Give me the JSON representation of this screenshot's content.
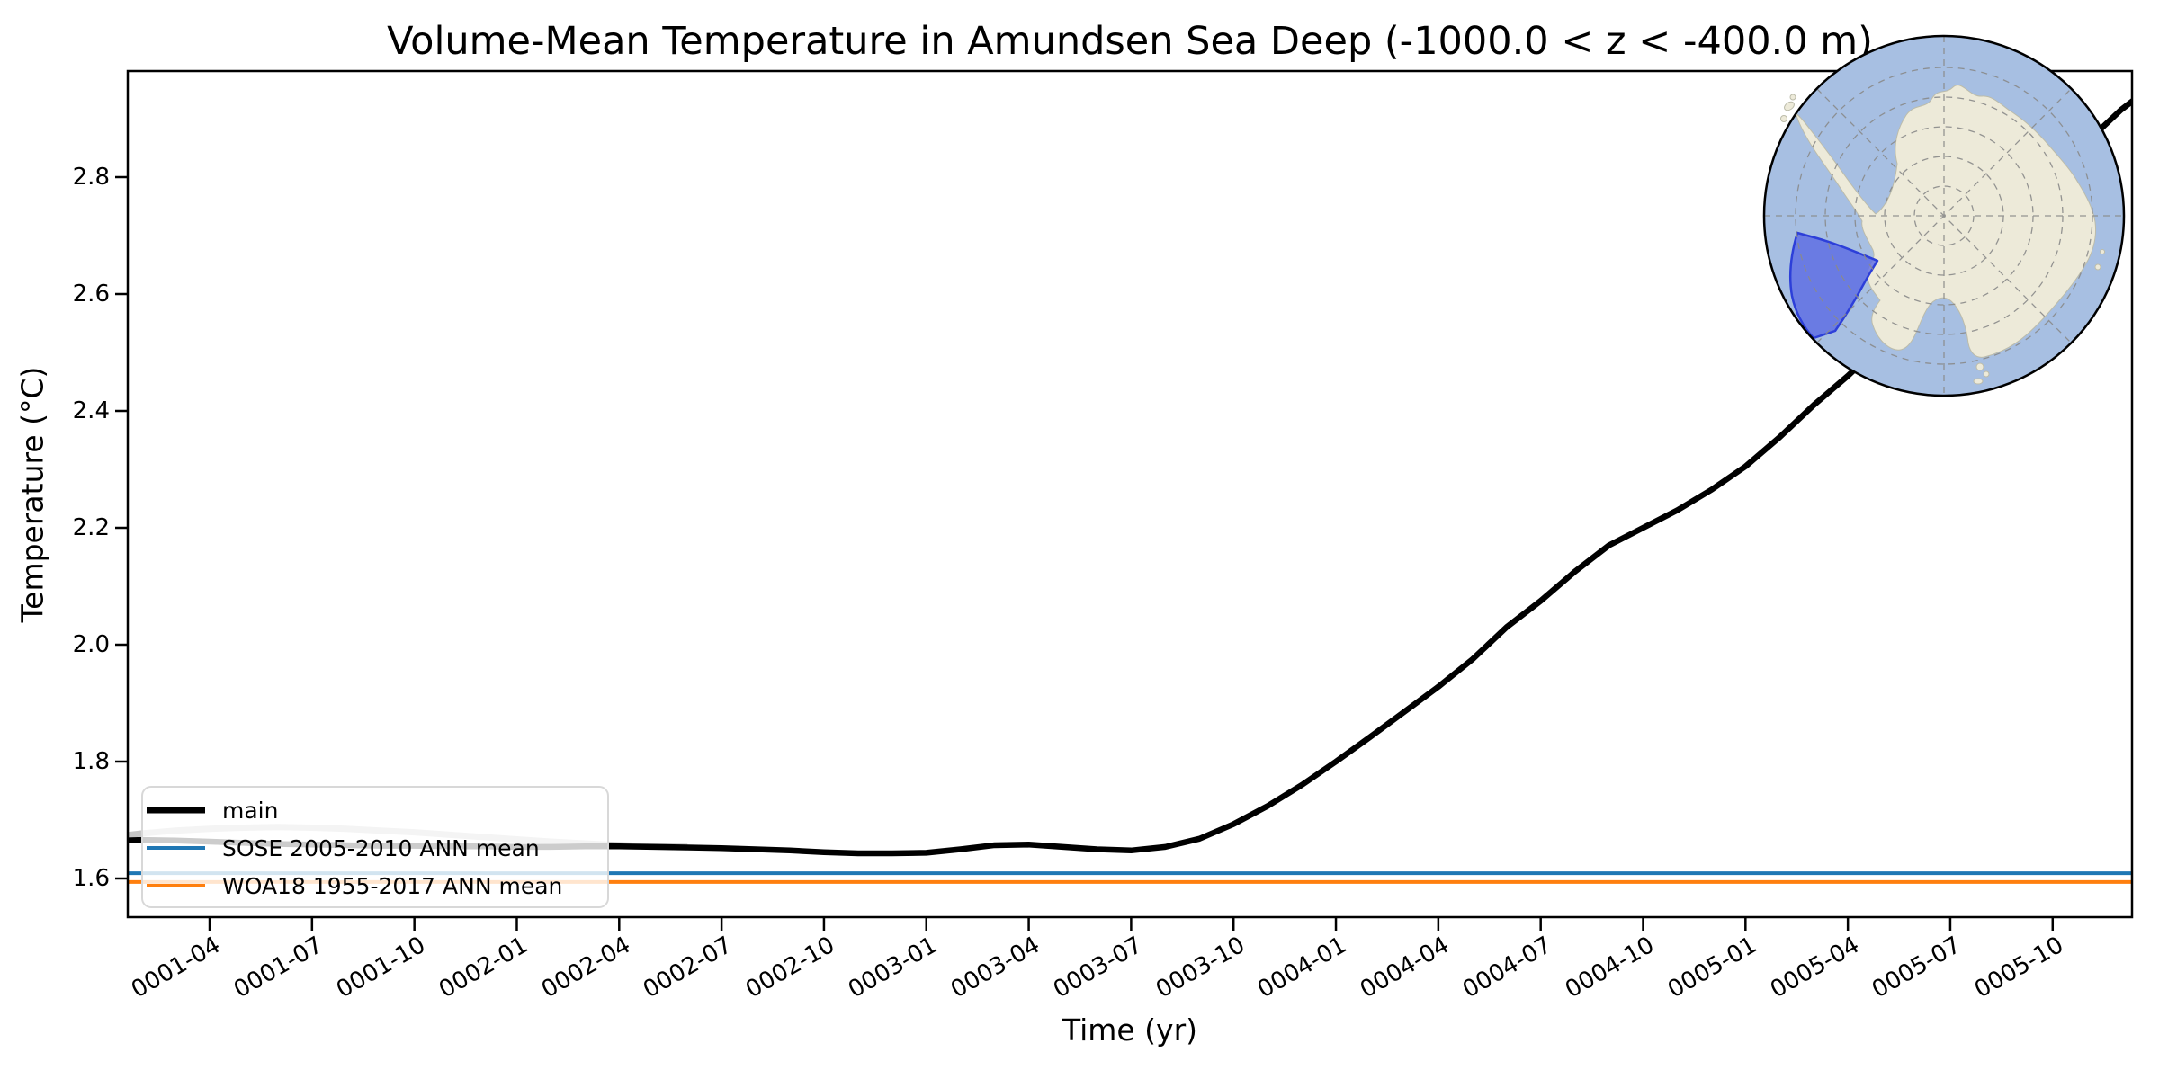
{
  "title": "Volume-Mean Temperature in Amundsen Sea Deep (-1000.0 < z < -400.0 m)",
  "xaxis": {
    "label": "Time (yr)",
    "ticks": [
      "0001-04",
      "0001-07",
      "0001-10",
      "0002-01",
      "0002-04",
      "0002-07",
      "0002-10",
      "0003-01",
      "0003-04",
      "0003-07",
      "0003-10",
      "0004-01",
      "0004-04",
      "0004-07",
      "0004-10",
      "0005-01",
      "0005-04",
      "0005-07",
      "0005-10"
    ]
  },
  "yaxis": {
    "label": "Temperature (°C)",
    "ticks": [
      "1.6",
      "1.8",
      "2.0",
      "2.2",
      "2.4",
      "2.6",
      "2.8"
    ]
  },
  "legend": {
    "entries": [
      {
        "label": "main",
        "color": "#000000",
        "linewidth": 7
      },
      {
        "label": "SOSE 2005-2010 ANN mean",
        "color": "#1f77b4",
        "linewidth": 4
      },
      {
        "label": "WOA18 1955-2017 ANN mean",
        "color": "#ff7f0e",
        "linewidth": 4
      }
    ]
  },
  "chart_data": {
    "type": "line",
    "title": "Volume-Mean Temperature in Amundsen Sea Deep (-1000.0 < z < -400.0 m)",
    "xlabel": "Time (yr)",
    "ylabel": "Temperature (°C)",
    "x_start": "0001-01",
    "x_step": "1 month",
    "xlim_months": [
      -0.6,
      60.6
    ],
    "ylim": [
      1.534,
      2.982
    ],
    "grid": false,
    "legend_position": "lower left",
    "series": [
      {
        "name": "unlabeled-gray-smoothed",
        "color": "#c6c6c6",
        "linewidth": 7,
        "kind": "line",
        "values": [
          1.67,
          1.677,
          1.682,
          1.685,
          1.687,
          1.688,
          1.687,
          1.685,
          1.682,
          1.679,
          1.675,
          1.671,
          1.667,
          1.663,
          1.66,
          1.657,
          1.655,
          1.654
        ]
      },
      {
        "name": "SOSE 2005-2010 ANN mean",
        "color": "#1f77b4",
        "linewidth": 4,
        "kind": "hline",
        "value": 1.609
      },
      {
        "name": "WOA18 1955-2017 ANN mean",
        "color": "#ff7f0e",
        "linewidth": 4,
        "kind": "hline",
        "value": 1.594
      },
      {
        "name": "main",
        "color": "#000000",
        "linewidth": 6.5,
        "kind": "line",
        "values": [
          1.664,
          1.666,
          1.665,
          1.663,
          1.661,
          1.659,
          1.658,
          1.657,
          1.656,
          1.656,
          1.655,
          1.655,
          1.654,
          1.654,
          1.655,
          1.655,
          1.654,
          1.653,
          1.652,
          1.65,
          1.648,
          1.645,
          1.643,
          1.643,
          1.644,
          1.65,
          1.657,
          1.658,
          1.654,
          1.65,
          1.648,
          1.654,
          1.668,
          1.693,
          1.724,
          1.76,
          1.8,
          1.842,
          1.885,
          1.928,
          1.975,
          2.03,
          2.075,
          2.125,
          2.17,
          2.2,
          2.23,
          2.265,
          2.305,
          2.355,
          2.41,
          2.46,
          2.515,
          2.57,
          2.625,
          2.682,
          2.74,
          2.8,
          2.86,
          2.915,
          2.96
        ]
      }
    ]
  },
  "inset_map": {
    "description": "South polar stereographic map of Antarctica with Amundsen Sea region highlighted",
    "ocean_color": "#a7bfe2",
    "land_color": "#edead9",
    "region_fill": "#5b6ae4",
    "region_edge": "#2d3fd9",
    "graticule_color": "#8a8a8a"
  }
}
